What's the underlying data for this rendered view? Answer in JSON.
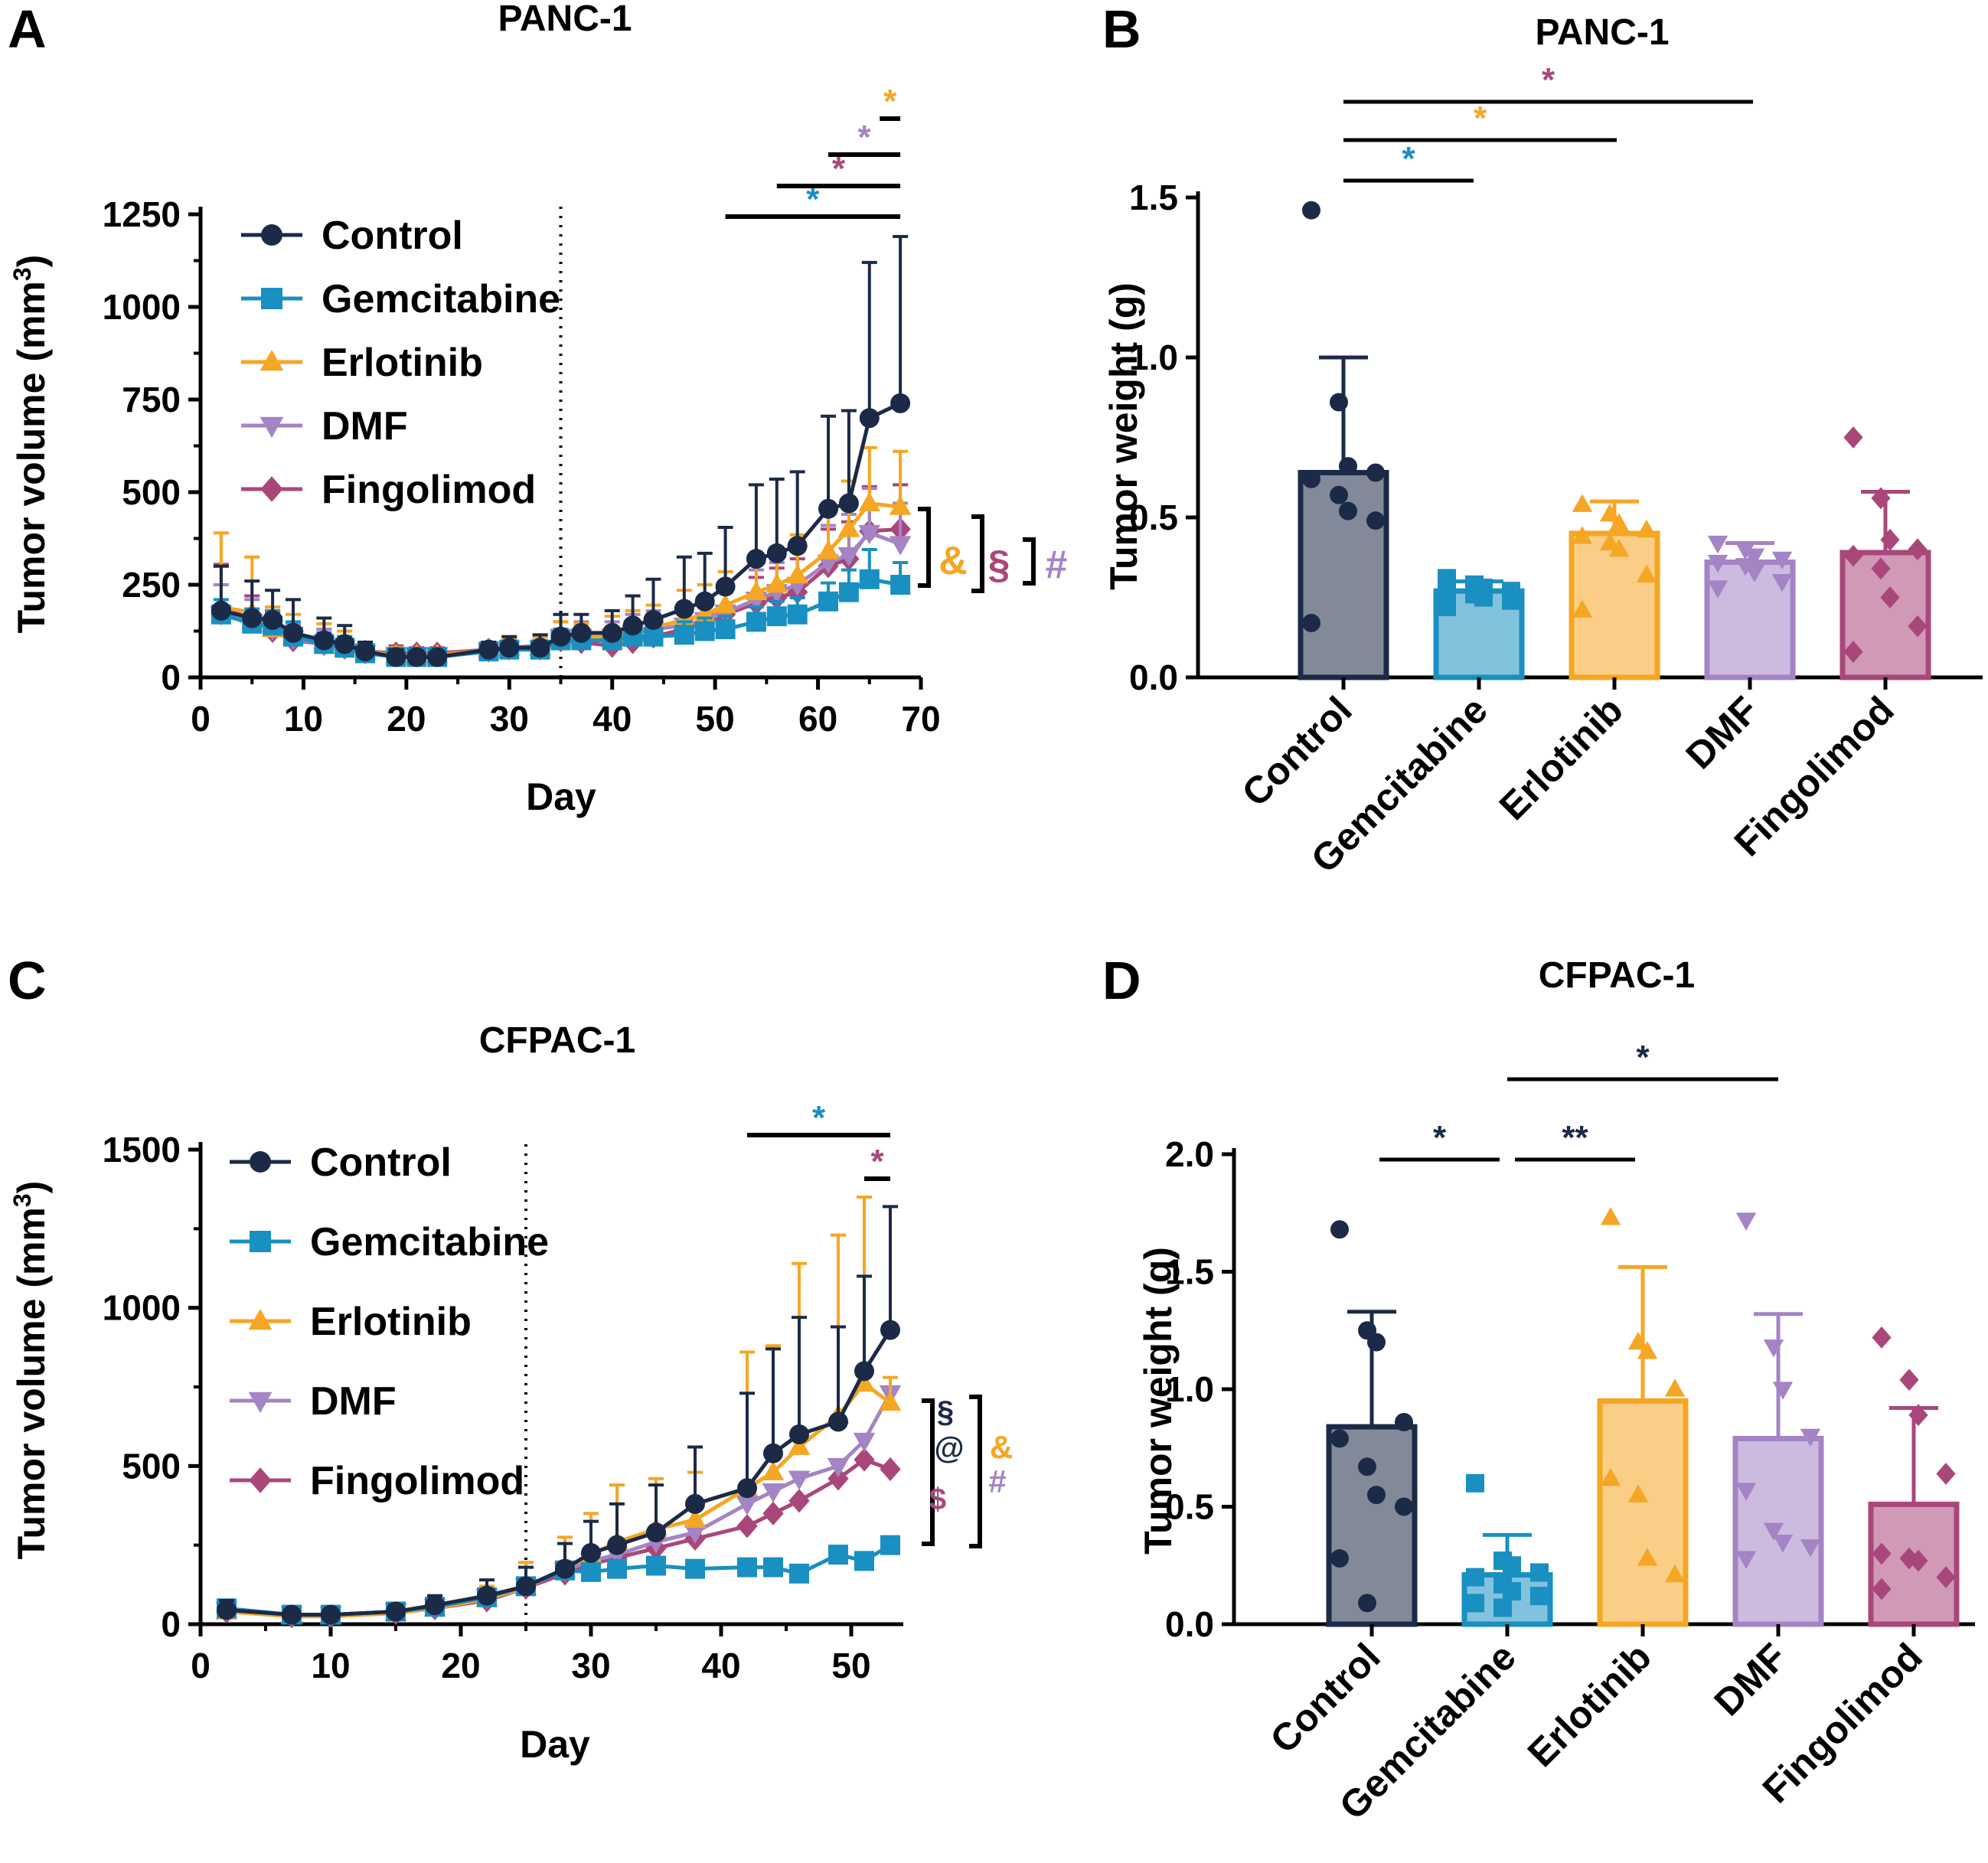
{
  "colors": {
    "control": "#1b2a47",
    "gemcitabine": "#1a8fc1",
    "erlotinib": "#f5a623",
    "dmf": "#a484c4",
    "fingolimod": "#a9477b",
    "axis": "#000000"
  },
  "chart_data": [
    {
      "id": "A",
      "type": "line",
      "panel_label": "A",
      "title": "PANC-1",
      "xlabel": "Day",
      "ylabel": "Tumor volume (mm",
      "ylabel_sup": "3",
      "ylabel_close": ")",
      "xlim": [
        0,
        70
      ],
      "ylim": [
        0,
        1250
      ],
      "xticks": [
        0,
        10,
        20,
        30,
        40,
        50,
        60,
        70
      ],
      "yticks": [
        0,
        250,
        500,
        750,
        1000,
        1250
      ],
      "treatment_start_day": 35,
      "x": [
        2,
        5,
        7,
        9,
        12,
        14,
        16,
        19,
        21,
        23,
        28,
        30,
        33,
        35,
        37,
        40,
        42,
        44,
        47,
        49,
        51,
        54,
        56,
        58,
        61,
        63,
        65,
        68
      ],
      "series": [
        {
          "name": "Control",
          "key": "control",
          "marker": "circle",
          "values": [
            180,
            160,
            155,
            120,
            100,
            90,
            70,
            55,
            55,
            55,
            75,
            80,
            80,
            110,
            120,
            120,
            140,
            155,
            185,
            205,
            245,
            320,
            335,
            355,
            455,
            470,
            700,
            740
          ],
          "errors": [
            120,
            100,
            80,
            90,
            60,
            50,
            25,
            20,
            15,
            15,
            20,
            30,
            35,
            60,
            50,
            60,
            80,
            110,
            140,
            130,
            160,
            200,
            200,
            200,
            250,
            250,
            420,
            450
          ]
        },
        {
          "name": "Gemcitabine",
          "key": "gemcitabine",
          "marker": "square",
          "values": [
            170,
            145,
            140,
            110,
            90,
            80,
            65,
            55,
            55,
            55,
            70,
            75,
            75,
            100,
            100,
            100,
            110,
            110,
            115,
            125,
            130,
            150,
            165,
            170,
            205,
            230,
            265,
            250
          ],
          "errors": [
            40,
            40,
            40,
            40,
            30,
            30,
            20,
            20,
            15,
            15,
            15,
            20,
            20,
            30,
            30,
            30,
            30,
            30,
            35,
            35,
            35,
            40,
            40,
            45,
            50,
            60,
            80,
            60
          ]
        },
        {
          "name": "Erlotinib",
          "key": "erlotinib",
          "marker": "triangle-up",
          "values": [
            190,
            175,
            130,
            110,
            95,
            85,
            70,
            60,
            60,
            60,
            75,
            80,
            80,
            110,
            105,
            115,
            120,
            135,
            155,
            170,
            195,
            230,
            250,
            275,
            340,
            400,
            470,
            460
          ],
          "errors": [
            200,
            150,
            60,
            60,
            50,
            40,
            25,
            20,
            15,
            15,
            20,
            25,
            30,
            40,
            40,
            50,
            60,
            60,
            80,
            80,
            90,
            100,
            100,
            110,
            120,
            130,
            150,
            150
          ]
        },
        {
          "name": "DMF",
          "key": "dmf",
          "marker": "triangle-down",
          "values": [
            170,
            150,
            130,
            105,
            90,
            80,
            65,
            60,
            60,
            60,
            70,
            75,
            75,
            110,
            110,
            110,
            120,
            130,
            140,
            155,
            175,
            210,
            230,
            250,
            310,
            330,
            390,
            360
          ],
          "errors": [
            80,
            60,
            50,
            40,
            40,
            30,
            20,
            20,
            15,
            15,
            20,
            20,
            25,
            40,
            40,
            40,
            50,
            50,
            60,
            60,
            70,
            80,
            80,
            90,
            100,
            110,
            120,
            110
          ]
        },
        {
          "name": "Fingolimod",
          "key": "fingolimod",
          "marker": "diamond",
          "values": [
            185,
            160,
            125,
            100,
            90,
            80,
            70,
            65,
            65,
            65,
            75,
            80,
            85,
            100,
            95,
            85,
            95,
            110,
            130,
            145,
            170,
            200,
            215,
            230,
            300,
            320,
            395,
            400
          ],
          "errors": [
            120,
            60,
            50,
            40,
            30,
            25,
            20,
            20,
            15,
            15,
            20,
            20,
            25,
            30,
            30,
            30,
            35,
            40,
            50,
            50,
            60,
            70,
            80,
            90,
            100,
            100,
            120,
            120
          ]
        }
      ],
      "legend": [
        "Control",
        "Gemcitabine",
        "Erlotinib",
        "DMF",
        "Fingolimod"
      ],
      "legend_position": "top-left",
      "significance": [
        {
          "symbol": "*",
          "color_key": "gemcitabine",
          "from_day": 51,
          "to_day": 68
        },
        {
          "symbol": "*",
          "color_key": "fingolimod",
          "from_day": 56,
          "to_day": 68
        },
        {
          "symbol": "*",
          "color_key": "dmf",
          "from_day": 61,
          "to_day": 68
        },
        {
          "symbol": "*",
          "color_key": "erlotinib",
          "from_day": 66,
          "to_day": 68
        }
      ],
      "end_brackets": [
        {
          "symbol": "&",
          "color_key": "erlotinib"
        },
        {
          "symbol": "§",
          "color_key": "fingolimod"
        },
        {
          "symbol": "#",
          "color_key": "dmf"
        }
      ]
    },
    {
      "id": "B",
      "type": "bar",
      "panel_label": "B",
      "title": "PANC-1",
      "ylabel": "Tumor weight (g)",
      "ylim": [
        0,
        1.5
      ],
      "yticks": [
        "0.0",
        "0.5",
        "1.0",
        "1.5"
      ],
      "categories": [
        "Control",
        "Gemcitabine",
        "Erlotinib",
        "DMF",
        "Fingolimod"
      ],
      "keys": [
        "control",
        "gemcitabine",
        "erlotinib",
        "dmf",
        "fingolimod"
      ],
      "markers": [
        "circle",
        "square",
        "triangle-up",
        "triangle-down",
        "diamond"
      ],
      "values": [
        0.64,
        0.27,
        0.45,
        0.36,
        0.39
      ],
      "errors": [
        0.36,
        0.03,
        0.1,
        0.06,
        0.19
      ],
      "points": [
        [
          1.46,
          0.86,
          0.66,
          0.64,
          0.62,
          0.57,
          0.52,
          0.49,
          0.17
        ],
        [
          0.31,
          0.29,
          0.28,
          0.27,
          0.26,
          0.26,
          0.25,
          0.24,
          0.22
        ],
        [
          0.54,
          0.51,
          0.48,
          0.46,
          0.44,
          0.42,
          0.4,
          0.32,
          0.21
        ],
        [
          0.42,
          0.4,
          0.38,
          0.37,
          0.36,
          0.35,
          0.33,
          0.3,
          0.28
        ],
        [
          0.75,
          0.56,
          0.43,
          0.4,
          0.38,
          0.34,
          0.25,
          0.16,
          0.08
        ]
      ],
      "significance": [
        {
          "symbol": "*",
          "color_key": "gemcitabine",
          "from": 0,
          "to": 1
        },
        {
          "symbol": "*",
          "color_key": "erlotinib",
          "from": 0,
          "to": 2
        },
        {
          "symbol": "*",
          "color_key": "fingolimod",
          "from": 0,
          "to": 3
        }
      ]
    },
    {
      "id": "C",
      "type": "line",
      "panel_label": "C",
      "title": "CFPAC-1",
      "xlabel": "Day",
      "ylabel": "Tumor volume (mm",
      "ylabel_sup": "3",
      "ylabel_close": ")",
      "xlim": [
        0,
        54
      ],
      "ylim": [
        0,
        1500
      ],
      "xticks": [
        0,
        10,
        20,
        30,
        40,
        50
      ],
      "yticks": [
        0,
        500,
        1000,
        1500
      ],
      "treatment_start_day": 25,
      "x": [
        2,
        7,
        10,
        15,
        18,
        22,
        25,
        28,
        30,
        32,
        35,
        38,
        42,
        44,
        46,
        49,
        51,
        53
      ],
      "series": [
        {
          "name": "Control",
          "key": "control",
          "marker": "circle",
          "values": [
            45,
            30,
            30,
            40,
            60,
            90,
            120,
            175,
            225,
            250,
            290,
            380,
            430,
            540,
            600,
            640,
            800,
            930
          ],
          "errors": [
            30,
            15,
            15,
            20,
            30,
            50,
            60,
            80,
            100,
            130,
            150,
            180,
            300,
            330,
            370,
            300,
            300,
            390
          ]
        },
        {
          "name": "Gemcitabine",
          "key": "gemcitabine",
          "marker": "square",
          "values": [
            50,
            30,
            30,
            40,
            55,
            85,
            120,
            170,
            165,
            175,
            185,
            175,
            180,
            180,
            160,
            220,
            200,
            250
          ]
        },
        {
          "name": "Erlotinib",
          "key": "erlotinib",
          "marker": "triangle-up",
          "values": [
            40,
            25,
            25,
            35,
            50,
            80,
            115,
            175,
            220,
            260,
            300,
            330,
            430,
            480,
            560,
            660,
            760,
            700
          ],
          "errors": [
            20,
            15,
            15,
            20,
            25,
            40,
            80,
            100,
            130,
            180,
            160,
            150,
            430,
            400,
            580,
            570,
            590,
            80
          ]
        },
        {
          "name": "DMF",
          "key": "dmf",
          "marker": "triangle-down",
          "values": [
            45,
            30,
            30,
            40,
            55,
            85,
            120,
            170,
            200,
            220,
            260,
            290,
            380,
            420,
            460,
            500,
            580,
            730
          ]
        },
        {
          "name": "Fingolimod",
          "key": "fingolimod",
          "marker": "diamond",
          "values": [
            40,
            25,
            25,
            35,
            50,
            75,
            115,
            160,
            190,
            210,
            240,
            270,
            310,
            350,
            390,
            460,
            520,
            490
          ]
        }
      ],
      "legend": [
        "Control",
        "Gemcitabine",
        "Erlotinib",
        "DMF",
        "Fingolimod"
      ],
      "legend_position": "top-left",
      "significance": [
        {
          "symbol": "*",
          "color_key": "gemcitabine",
          "from_day": 42,
          "to_day": 53
        },
        {
          "symbol": "*",
          "color_key": "fingolimod",
          "from_day": 51,
          "to_day": 53
        }
      ],
      "end_brackets": [
        {
          "symbol": "§",
          "color_key": "control"
        },
        {
          "symbol": "@",
          "color_key": "control"
        },
        {
          "symbol": "$",
          "color_key": "fingolimod"
        },
        {
          "symbol": "&",
          "color_key": "erlotinib"
        },
        {
          "symbol": "#",
          "color_key": "dmf"
        }
      ]
    },
    {
      "id": "D",
      "type": "bar",
      "panel_label": "D",
      "title": "CFPAC-1",
      "ylabel": "Tumor weight (g)",
      "ylim": [
        0,
        2.0
      ],
      "yticks": [
        "0.0",
        "0.5",
        "1.0",
        "1.5",
        "2.0"
      ],
      "categories": [
        "Control",
        "Gemcitabine",
        "Erlotinib",
        "DMF",
        "Fingolimod"
      ],
      "keys": [
        "control",
        "gemcitabine",
        "erlotinib",
        "dmf",
        "fingolimod"
      ],
      "markers": [
        "circle",
        "square",
        "triangle-up",
        "triangle-down",
        "diamond"
      ],
      "values": [
        0.84,
        0.21,
        0.95,
        0.79,
        0.51
      ],
      "errors": [
        0.49,
        0.17,
        0.57,
        0.53,
        0.41
      ],
      "points": [
        [
          1.68,
          1.25,
          1.2,
          0.86,
          0.79,
          0.67,
          0.55,
          0.5,
          0.28,
          0.09
        ],
        [
          0.6,
          0.27,
          0.25,
          0.22,
          0.2,
          0.17,
          0.14,
          0.12,
          0.09,
          0.07
        ],
        [
          1.73,
          1.2,
          1.16,
          1.0,
          0.62,
          0.55,
          0.28,
          0.21
        ],
        [
          1.72,
          1.18,
          1.0,
          0.8,
          0.57,
          0.4,
          0.35,
          0.33,
          0.28
        ],
        [
          1.22,
          1.04,
          0.89,
          0.64,
          0.3,
          0.28,
          0.27,
          0.2,
          0.15
        ]
      ],
      "significance": [
        {
          "symbol": "*",
          "color_key": "control",
          "from": 0,
          "to": 1
        },
        {
          "symbol": "**",
          "color_key": "control",
          "from": 1,
          "to": 2
        },
        {
          "symbol": "*",
          "color_key": "control",
          "from": 1,
          "to": 3
        }
      ]
    }
  ]
}
